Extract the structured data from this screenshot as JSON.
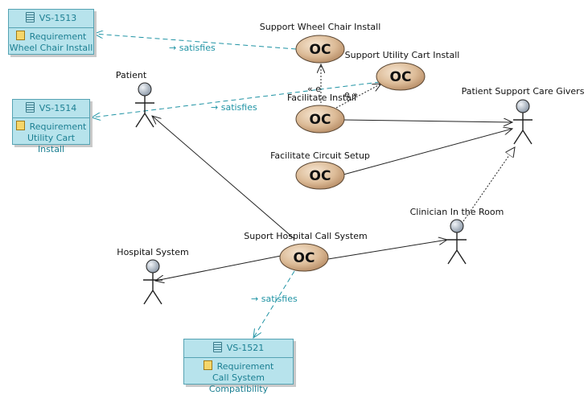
{
  "use_cases": [
    {
      "id": "uc-wheel",
      "label": "Support Wheel Chair Install",
      "icon": "OC"
    },
    {
      "id": "uc-cart",
      "label": "Support Utility Cart Install",
      "icon": "OC"
    },
    {
      "id": "uc-facilitate",
      "label": "Facilitate Install",
      "icon": "OC"
    },
    {
      "id": "uc-circuit",
      "label": "Facilitate Circuit Setup",
      "icon": "OC"
    },
    {
      "id": "uc-call",
      "label": "Suport Hospital Call System",
      "icon": "OC"
    }
  ],
  "actors": [
    {
      "id": "patient",
      "label": "Patient"
    },
    {
      "id": "caregivers",
      "label": "Patient Support Care Givers"
    },
    {
      "id": "clinician",
      "label": "Clinician In the Room"
    },
    {
      "id": "hospital",
      "label": "Hospital System"
    }
  ],
  "requirements": [
    {
      "id": "VS-1513",
      "stereotype": "Requirement",
      "name": "Wheel Chair Install"
    },
    {
      "id": "VS-1514",
      "stereotype": "Requirement",
      "name": "Utility Cart Install"
    },
    {
      "id": "VS-1521",
      "stereotype": "Requirement",
      "name": "Call System Compatibility"
    }
  ],
  "relations": {
    "satisfies": "satisfies",
    "extend_left": "« e",
    "extend_right": "e »"
  },
  "colors": {
    "requirement_fill": "#b7e3ec",
    "requirement_border": "#56a3b3",
    "satisfies_link": "#1f93a4",
    "usecase_fill": "#d2ad88"
  }
}
